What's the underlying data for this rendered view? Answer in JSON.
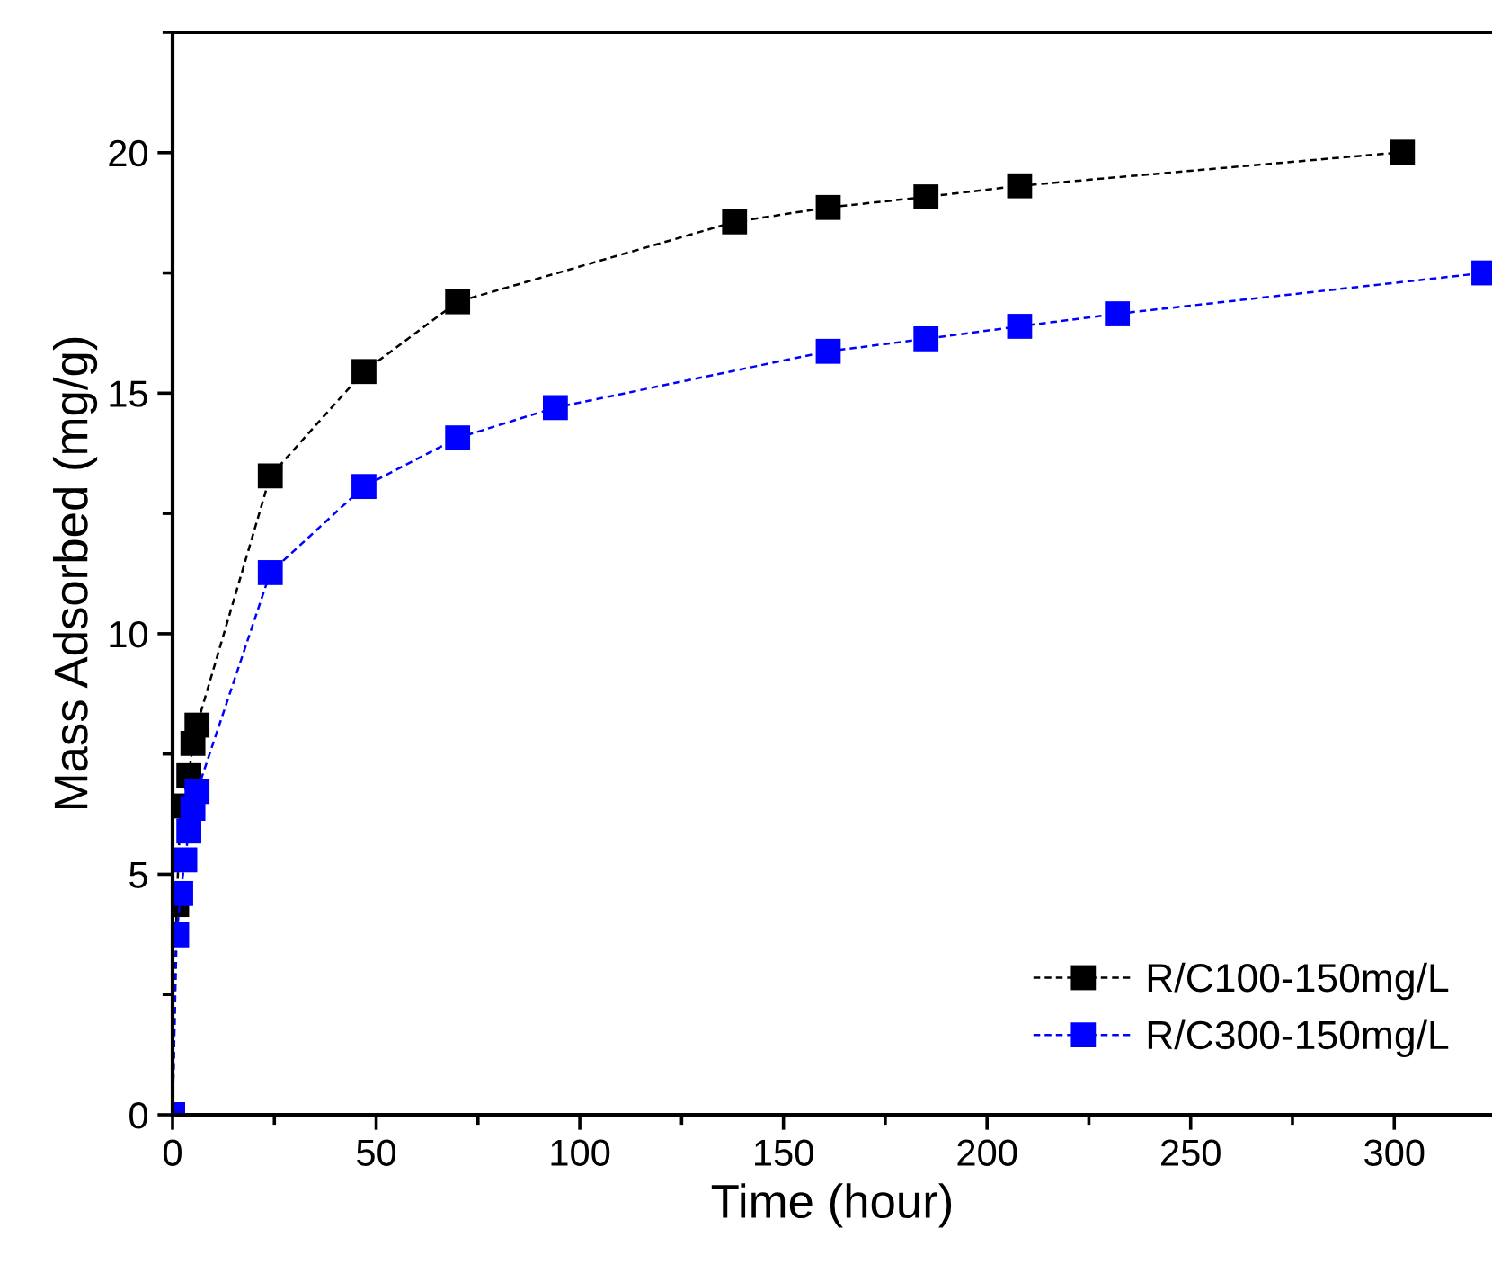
{
  "chart_data": {
    "type": "line",
    "xlabel": "Time (hour)",
    "ylabel": "Mass Adsorbed (mg/g)",
    "xlim": [
      0,
      324
    ],
    "xticks": [
      0,
      50,
      100,
      150,
      200,
      250,
      300
    ],
    "ylim": [
      0,
      22.5
    ],
    "yticks": [
      0,
      5,
      10,
      15,
      20
    ],
    "grid": false,
    "legend": "bottom right",
    "marker": "square",
    "line_style": "dashed",
    "series": [
      {
        "name": "R/C100-150mg/L",
        "color": "#000000",
        "x": [
          0,
          1,
          2,
          4,
          5,
          6,
          24,
          47,
          70,
          138,
          161,
          185,
          208,
          302
        ],
        "values": [
          0,
          4.37,
          6.42,
          7.05,
          7.72,
          8.1,
          13.28,
          15.45,
          16.9,
          18.56,
          18.86,
          19.08,
          19.31,
          20.01
        ]
      },
      {
        "name": "R/C300-150mg/L",
        "color": "#0000ff",
        "x": [
          0,
          1,
          2,
          3,
          4,
          5,
          6,
          24,
          47,
          70,
          94,
          161,
          185,
          208,
          232,
          322
        ],
        "values": [
          0,
          3.74,
          4.6,
          5.3,
          5.9,
          6.37,
          6.72,
          11.27,
          13.06,
          14.07,
          14.7,
          15.87,
          16.13,
          16.39,
          16.65,
          17.5
        ]
      }
    ]
  }
}
